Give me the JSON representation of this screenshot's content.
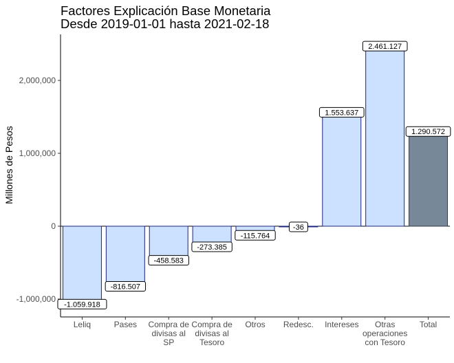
{
  "chart_data": {
    "type": "bar",
    "title": "Factores Explicación Base Monetaria",
    "subtitle": "Desde 2019-01-01 hasta 2021-02-18",
    "xlabel": "",
    "ylabel": "Millones de Pesos",
    "ylim": [
      -1250000,
      2600000
    ],
    "yticks": [
      -1000000,
      0,
      1000000,
      2000000
    ],
    "ytick_labels": [
      "-1,000,000",
      "0",
      "1,000,000",
      "2,000,000"
    ],
    "grid": false,
    "categories": [
      [
        "Leliq"
      ],
      [
        "Pases"
      ],
      [
        "Compra de",
        "divisas al",
        "SP"
      ],
      [
        "Compra de",
        "divisas al",
        "Tesoro"
      ],
      [
        "Otros"
      ],
      [
        "Redesc."
      ],
      [
        "Intereses"
      ],
      [
        "Otras",
        "operaciones",
        "con Tesoro"
      ],
      [
        "Total"
      ]
    ],
    "values": [
      -1059918,
      -816507,
      -458583,
      -273385,
      -115764,
      -36,
      1553637,
      2461127,
      1290572
    ],
    "data_labels": [
      "-1.059.918",
      "-816.507",
      "-458.583",
      "-273.385",
      "-115.764",
      "-36",
      "1.553.637",
      "2.461.127",
      "1.290.572"
    ],
    "colors": {
      "bar_fill": "#cce0ff",
      "bar_stroke": "#1a237e",
      "total_fill": "#778899",
      "total_stroke": "#2f3a45",
      "axis": "#000000"
    }
  }
}
